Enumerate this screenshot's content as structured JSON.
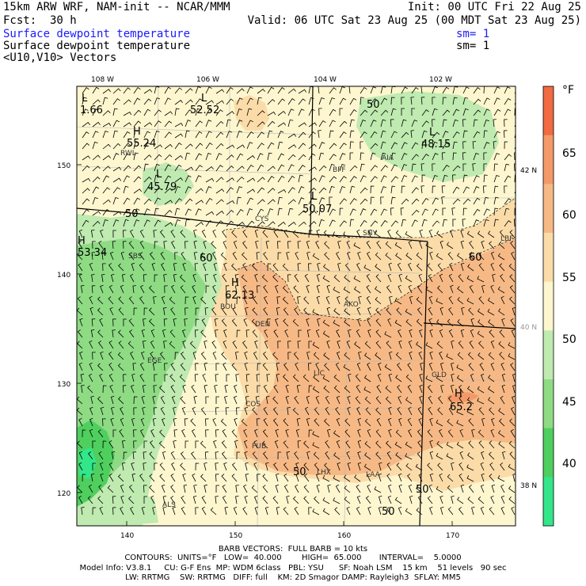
{
  "header": {
    "model_title": "15km ARW WRF, NAM-init -- NCAR/MMM",
    "fcst_label": "Fcst:",
    "fcst_value": "30 h",
    "init": "Init: 00 UTC Fri 22 Aug 25",
    "valid": "Valid: 06 UTC Sat 23 Aug 25 (00 MDT Sat 23 Aug 25)",
    "field1": "Surface dewpoint temperature",
    "field1_sm": "sm= 1",
    "field2": "Surface dewpoint temperature",
    "field2_sm": "sm= 1",
    "field3": "<U10,V10> Vectors"
  },
  "colors": {
    "blue_text": "#1a1aff",
    "levels": [
      "#33e68a",
      "#4fcf5e",
      "#8edb84",
      "#bfeab0",
      "#fdf6cf",
      "#fbdca8",
      "#f6b985",
      "#f39a68",
      "#f06a42"
    ]
  },
  "lon_labels": [
    "108 W",
    "106 W",
    "104 W",
    "102 W"
  ],
  "lat_labels": [
    "42 N",
    "40 N",
    "38 N"
  ],
  "x_ticks": [
    "140",
    "150",
    "160",
    "170"
  ],
  "y_ticks": [
    "150",
    "140",
    "130",
    "120"
  ],
  "colorbar": {
    "unit": "°F",
    "ticks": [
      "65",
      "60",
      "55",
      "50",
      "45",
      "40"
    ]
  },
  "map_labels": {
    "stations": [
      "RWL",
      "BFF",
      "AIA",
      "CYS",
      "SNY",
      "SBS",
      "BOU",
      "DEN",
      "AKO",
      "EGE",
      "LIC",
      "GLD",
      "COS",
      "PUB",
      "LHX",
      "LAA",
      "ALS",
      "LBF"
    ],
    "contours": [
      "50",
      "50",
      "60",
      "50",
      "50",
      "50",
      "60"
    ],
    "highs_lows": [
      {
        "mark": "L",
        "value": "1.66"
      },
      {
        "mark": "L",
        "value": "52.52"
      },
      {
        "mark": "H",
        "value": "55.24"
      },
      {
        "mark": "L",
        "value": "45.79"
      },
      {
        "mark": "L",
        "value": "48.15"
      },
      {
        "mark": "L",
        "value": "50.07"
      },
      {
        "mark": "H",
        "value": "53.34"
      },
      {
        "mark": "H",
        "value": "62.13"
      },
      {
        "mark": "H",
        "value": "65.2"
      }
    ]
  },
  "footer": {
    "barb": "BARB VECTORS:  FULL BARB = 10 kts",
    "contours": "CONTOURS:  UNITS=°F   LOW=  40.000        HIGH=  65.000       INTERVAL=    5.0000",
    "model_info": "Model Info: V3.8.1     CU: G-F Ens  MP: WDM 6class   PBL: YSU      SF: Noah LSM    15 km    51 levels   90 sec",
    "model_info2": "LW: RRTMG    SW: RRTMG   DIFF: full    KM: 2D Smagor DAMP: Rayleigh3  SFLAY: MM5"
  }
}
